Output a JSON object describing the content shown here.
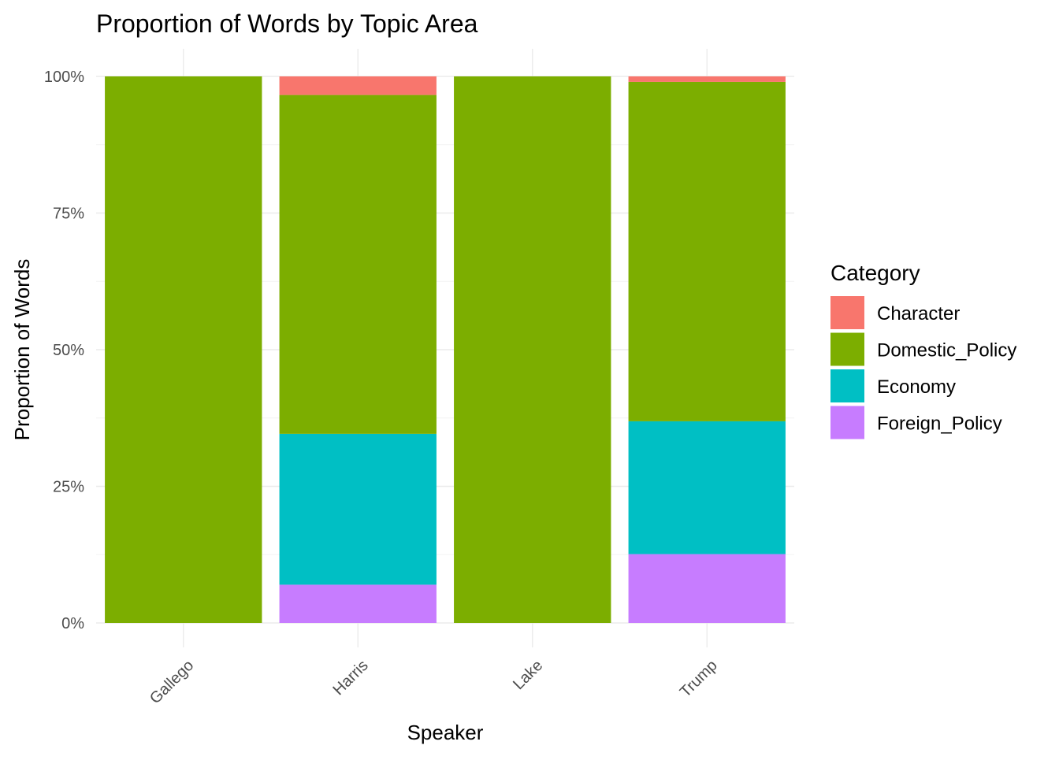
{
  "chart_data": {
    "type": "bar",
    "stacked": true,
    "title": "Proportion of Words by Topic Area",
    "xlabel": "Speaker",
    "ylabel": "Proportion of Words",
    "categories": [
      "Gallego",
      "Harris",
      "Lake",
      "Trump"
    ],
    "ylim": [
      0,
      1
    ],
    "yticks": [
      0,
      0.25,
      0.5,
      0.75,
      1.0
    ],
    "ytick_labels": [
      "0%",
      "25%",
      "50%",
      "75%",
      "100%"
    ],
    "grid": true,
    "legend_title": "Category",
    "legend_position": "right",
    "series": [
      {
        "name": "Foreign_Policy",
        "color": "#C77CFF",
        "values": [
          0.0,
          0.07,
          0.0,
          0.126
        ]
      },
      {
        "name": "Economy",
        "color": "#00BFC4",
        "values": [
          0.0,
          0.276,
          0.0,
          0.243
        ]
      },
      {
        "name": "Domestic_Policy",
        "color": "#7CAE00",
        "values": [
          1.0,
          0.62,
          1.0,
          0.621
        ]
      },
      {
        "name": "Character",
        "color": "#F8766D",
        "values": [
          0.0,
          0.034,
          0.0,
          0.01
        ]
      }
    ],
    "legend_order": [
      "Character",
      "Domestic_Policy",
      "Economy",
      "Foreign_Policy"
    ]
  }
}
